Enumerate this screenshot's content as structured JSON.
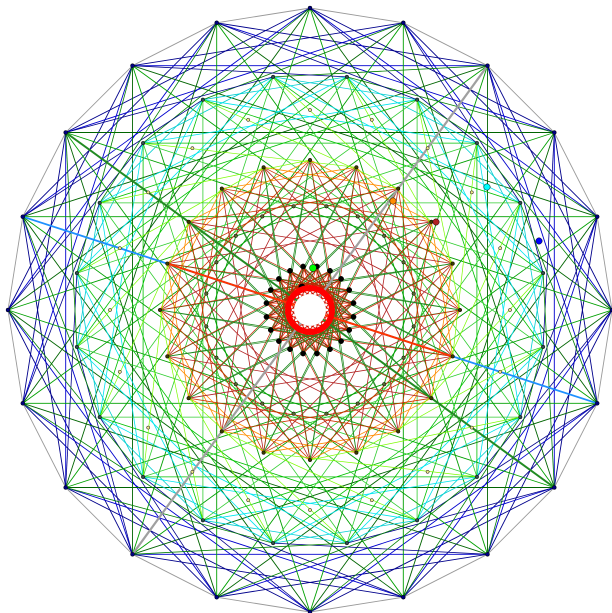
{
  "figure": {
    "description_type": "star-polygon-line-art",
    "symmetry_order": 20,
    "background_color": "#ffffff",
    "center_disc_color": "#ffffff",
    "center_disc_ring_color": "#ff0000",
    "rings": [
      {
        "id": "outer",
        "vertex_color": "#000080",
        "edges": [
          {
            "skip": 1,
            "color": "#9a9a9a"
          },
          {
            "skip": 3,
            "color": "#00008b"
          },
          {
            "skip": 4,
            "color": "#0000cd"
          },
          {
            "skip": 6,
            "color": "#006400"
          },
          {
            "skip": 8,
            "color": "#00a000"
          }
        ]
      },
      {
        "id": "middle",
        "vertex_color": "#2f4f4f",
        "edges": [
          {
            "skip": 2,
            "color": "#00ced1"
          },
          {
            "skip": 4,
            "color": "#00e5ee"
          },
          {
            "skip": 5,
            "color": "#00c000"
          },
          {
            "skip": 7,
            "color": "#32cd32"
          }
        ]
      },
      {
        "id": "inner",
        "vertex_color": "#3a3a00",
        "edges": [
          {
            "skip": 3,
            "color": "#ff8c00"
          },
          {
            "skip": 5,
            "color": "#cc3300"
          },
          {
            "skip": 7,
            "color": "#b22222"
          },
          {
            "skip": 9,
            "color": "#228b22"
          }
        ]
      },
      {
        "id": "core",
        "vertex_color": "#000000",
        "edges": [
          {
            "skip": 6,
            "color": "#ff0000"
          },
          {
            "skip": 8,
            "color": "#8b0000"
          },
          {
            "skip": 9,
            "color": "#ff2000"
          }
        ]
      }
    ],
    "highlight_dots": [
      {
        "color": "#00ffff"
      },
      {
        "color": "#0000ff"
      },
      {
        "color": "#b22222"
      },
      {
        "color": "#ff8c00"
      },
      {
        "color": "#00ff00"
      },
      {
        "color": "#000000"
      }
    ]
  }
}
